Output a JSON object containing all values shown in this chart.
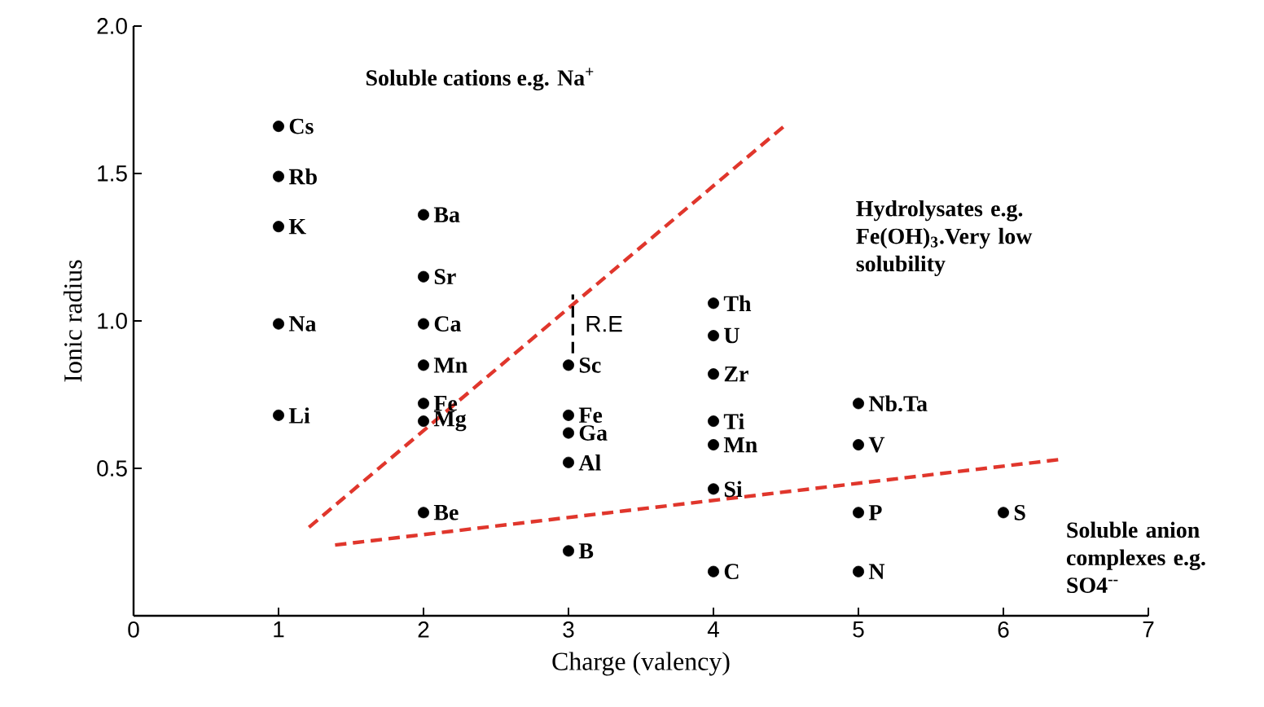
{
  "chart_data": {
    "type": "scatter",
    "xlabel": "Charge (valency)",
    "ylabel": "Ionic radius",
    "xlim": [
      0,
      7
    ],
    "ylim": [
      0,
      2.0
    ],
    "xticks": [
      0,
      1,
      2,
      3,
      4,
      5,
      6,
      7
    ],
    "yticks": [
      {
        "value": 0.5,
        "label": "0.5"
      },
      {
        "value": 1.0,
        "label": "1.0"
      },
      {
        "value": 1.5,
        "label": "1.5"
      },
      {
        "value": 2.0,
        "label": "2.0"
      }
    ],
    "series": [
      {
        "color": "#000000",
        "marker": "circle",
        "x": [
          1,
          1,
          1,
          1,
          1,
          2,
          2,
          2,
          2,
          2,
          2,
          2,
          3,
          3,
          3,
          3,
          3,
          4,
          4,
          4,
          4,
          4,
          4,
          4,
          5,
          5,
          5,
          5,
          6
        ],
        "values": [
          1.66,
          1.49,
          1.32,
          0.99,
          0.68,
          1.36,
          1.15,
          0.99,
          0.85,
          0.72,
          0.66,
          0.35,
          0.85,
          0.68,
          0.62,
          0.52,
          0.22,
          1.06,
          0.95,
          0.82,
          0.66,
          0.58,
          0.43,
          0.15,
          0.72,
          0.58,
          0.35,
          0.15,
          0.35
        ]
      },
      {
        "type": "line",
        "color": "#e0362c",
        "line_style": "dashed",
        "marker": "none",
        "x": [
          1.21,
          4.51
        ],
        "values": [
          0.3,
          1.67
        ]
      },
      {
        "type": "line",
        "color": "#e0362c",
        "line_style": "dashed",
        "marker": "none",
        "x": [
          1.39,
          6.39
        ],
        "values": [
          0.24,
          0.53
        ]
      },
      {
        "type": "line",
        "color": "#000000",
        "line_style": "dashed",
        "marker": "none",
        "x": [
          3.03,
          3.03
        ],
        "values": [
          0.89,
          1.09
        ]
      }
    ],
    "annotations": [
      "Soluble cations e.g. Na$^{+}$",
      "Hydrolysates e.g. Fe(OH)$_{3}$.Very low solubility",
      "Soluble anion complexes e.g. SO4$^{--}$",
      {
        "text": "R.E",
        "x": 3.03,
        "y": 0.99
      },
      {
        "text": "Cs",
        "x": 1,
        "y": 1.66
      },
      {
        "text": "Rb",
        "x": 1,
        "y": 1.49
      },
      {
        "text": "K",
        "x": 1,
        "y": 1.32
      },
      {
        "text": "Na",
        "x": 1,
        "y": 0.99
      },
      {
        "text": "Li",
        "x": 1,
        "y": 0.68
      },
      {
        "text": "Ba",
        "x": 2,
        "y": 1.36
      },
      {
        "text": "Sr",
        "x": 2,
        "y": 1.15
      },
      {
        "text": "Ca",
        "x": 2,
        "y": 0.99
      },
      {
        "text": "Mn",
        "x": 2,
        "y": 0.85
      },
      {
        "text": "Fe",
        "x": 2,
        "y": 0.72
      },
      {
        "text": "Mg",
        "x": 2,
        "y": 0.66
      },
      {
        "text": "Be",
        "x": 2,
        "y": 0.35
      },
      {
        "text": "Sc",
        "x": 3,
        "y": 0.85
      },
      {
        "text": "Fe",
        "x": 3,
        "y": 0.68
      },
      {
        "text": "Ga",
        "x": 3,
        "y": 0.62
      },
      {
        "text": "Al",
        "x": 3,
        "y": 0.52
      },
      {
        "text": "B",
        "x": 3,
        "y": 0.22
      },
      {
        "text": "Th",
        "x": 4,
        "y": 1.06
      },
      {
        "text": "U",
        "x": 4,
        "y": 0.95
      },
      {
        "text": "Zr",
        "x": 4,
        "y": 0.82
      },
      {
        "text": "Ti",
        "x": 4,
        "y": 0.66
      },
      {
        "text": "Mn",
        "x": 4,
        "y": 0.58
      },
      {
        "text": "Si",
        "x": 4,
        "y": 0.43
      },
      {
        "text": "C",
        "x": 4,
        "y": 0.15
      },
      {
        "text": "Nb.Ta",
        "x": 5,
        "y": 0.72
      },
      {
        "text": "V",
        "x": 5,
        "y": 0.58
      },
      {
        "text": "P",
        "x": 5,
        "y": 0.35
      },
      {
        "text": "N",
        "x": 5,
        "y": 0.15
      },
      {
        "text": "S",
        "x": 6,
        "y": 0.35
      }
    ]
  }
}
